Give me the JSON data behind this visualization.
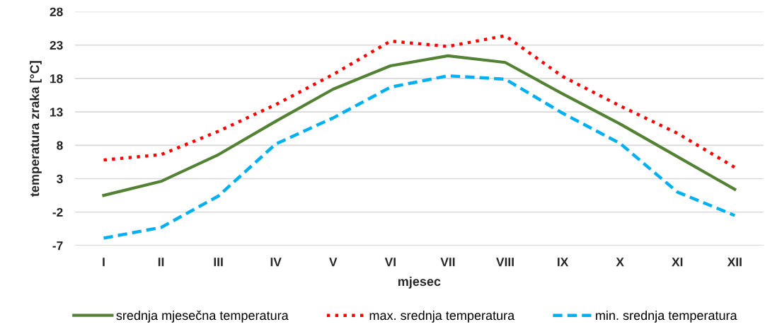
{
  "chart_data": {
    "type": "line",
    "xlabel": "mjesec",
    "ylabel": "temperatura zraka [°C]",
    "categories": [
      "I",
      "II",
      "III",
      "IV",
      "V",
      "VI",
      "VII",
      "VIII",
      "IX",
      "X",
      "XI",
      "XII"
    ],
    "series": [
      {
        "name": "srednja mjesečna temperatura",
        "color": "#548235",
        "line_style": "solid",
        "values": [
          0.5,
          2.6,
          6.6,
          11.6,
          16.4,
          19.9,
          21.4,
          20.4,
          15.7,
          11.2,
          6.3,
          1.4
        ]
      },
      {
        "name": "max. srednja temperatura",
        "color": "#ff0000",
        "line_style": "dotted",
        "values": [
          5.8,
          6.6,
          10.1,
          14.1,
          18.6,
          23.6,
          22.8,
          24.4,
          18.3,
          13.9,
          9.8,
          4.7
        ]
      },
      {
        "name": "min. srednja temperatura",
        "color": "#00b0f0",
        "line_style": "dashed",
        "values": [
          -5.9,
          -4.3,
          0.4,
          8.2,
          12.1,
          16.7,
          18.4,
          17.9,
          12.8,
          8.3,
          1.0,
          -2.5
        ]
      }
    ],
    "ylim": [
      -7,
      28
    ],
    "yticks": [
      -7,
      -2,
      3,
      8,
      13,
      18,
      23,
      28
    ],
    "grid": "y",
    "legend": "bottom",
    "marker": "none"
  }
}
